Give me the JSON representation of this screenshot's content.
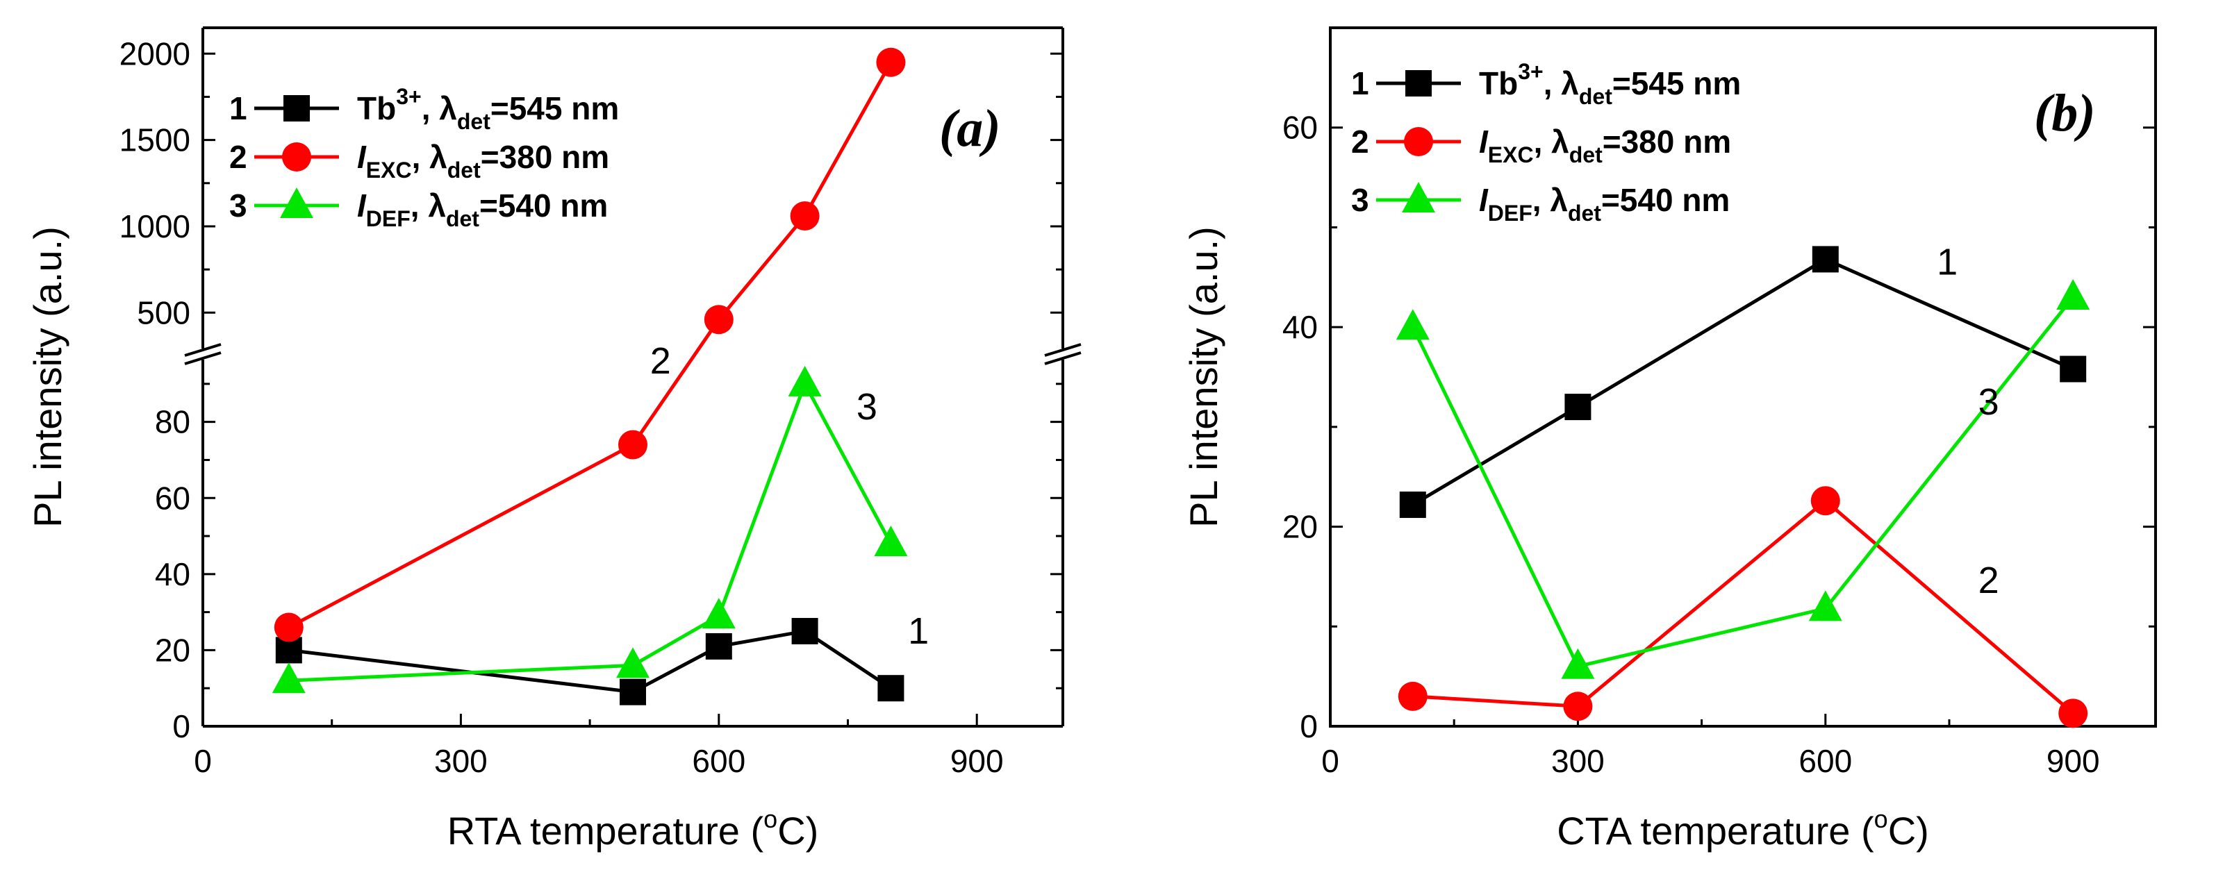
{
  "colors": {
    "series_1": "#000000",
    "series_2": "#ff0000",
    "series_3": "#00e600"
  },
  "chart_data": [
    {
      "type": "line",
      "panel_tag": "(a)",
      "xlabel": "RTA temperature (°C)",
      "xlabel_parts": [
        "RTA temperature (",
        "o",
        "C)"
      ],
      "ylabel": "PL intensity (a.u.)",
      "xlim": [
        0,
        1000
      ],
      "x_ticks": [
        0,
        300,
        600,
        900
      ],
      "axis_break": true,
      "ylim_lower": [
        0,
        96
      ],
      "y_ticks_lower": [
        0,
        20,
        40,
        60,
        80
      ],
      "ylim_upper": [
        300,
        2150
      ],
      "y_ticks_upper": [
        500,
        1000,
        1500,
        2000
      ],
      "legend": [
        {
          "num": "1",
          "main": "Tb",
          "sup": "3+",
          "rest": ", λ",
          "sub": "det",
          "tail": "=545 nm"
        },
        {
          "num": "2",
          "main": "I",
          "sub1": "EXC",
          "rest": ", λ",
          "sub": "det",
          "tail": "=380 nm"
        },
        {
          "num": "3",
          "main": "I",
          "sub1": "DEF",
          "rest": ", λ",
          "sub": "det",
          "tail": "=540 nm"
        }
      ],
      "series": [
        {
          "name": "1",
          "marker": "square",
          "x": [
            100,
            500,
            600,
            700,
            800
          ],
          "y": [
            20,
            9,
            21,
            25,
            10
          ]
        },
        {
          "name": "2",
          "marker": "circle",
          "x": [
            100,
            500,
            600,
            700,
            800
          ],
          "y": [
            26,
            74,
            460,
            1060,
            1950
          ]
        },
        {
          "name": "3",
          "marker": "triangle",
          "x": [
            100,
            500,
            600,
            700,
            800
          ],
          "y": [
            12,
            16,
            29,
            90,
            48
          ]
        }
      ],
      "curve_labels": [
        {
          "text": "1",
          "x": 820,
          "y": 25
        },
        {
          "text": "2",
          "x": 520,
          "y": 96
        },
        {
          "text": "3",
          "x": 760,
          "y": 84
        }
      ]
    },
    {
      "type": "line",
      "panel_tag": "(b)",
      "xlabel": "CTA temperature (°C)",
      "xlabel_parts": [
        "CTA temperature (",
        "o",
        "C)"
      ],
      "ylabel": "PL intensity (a.u.)",
      "xlim": [
        0,
        1000
      ],
      "x_ticks": [
        0,
        300,
        600,
        900
      ],
      "ylim": [
        0,
        70
      ],
      "y_ticks": [
        0,
        20,
        40,
        60
      ],
      "legend": [
        {
          "num": "1",
          "main": "Tb",
          "sup": "3+",
          "rest": ", λ",
          "sub": "det",
          "tail": "=545 nm"
        },
        {
          "num": "2",
          "main": "I",
          "sub1": "EXC",
          "rest": ", λ",
          "sub": "det",
          "tail": "=380 nm"
        },
        {
          "num": "3",
          "main": "I",
          "sub1": "DEF",
          "rest": ", λ",
          "sub": "det",
          "tail": "=540 nm"
        }
      ],
      "series": [
        {
          "name": "1",
          "marker": "square",
          "x": [
            100,
            300,
            600,
            900
          ],
          "y": [
            22.2,
            32,
            46.8,
            35.8
          ]
        },
        {
          "name": "2",
          "marker": "circle",
          "x": [
            100,
            300,
            600,
            900
          ],
          "y": [
            3,
            2,
            22.6,
            1.3
          ]
        },
        {
          "name": "3",
          "marker": "triangle",
          "x": [
            100,
            300,
            600,
            900
          ],
          "y": [
            40,
            6,
            11.8,
            43
          ]
        }
      ],
      "curve_labels": [
        {
          "text": "1",
          "x": 735,
          "y": 46.5
        },
        {
          "text": "2",
          "x": 785,
          "y": 14.6
        },
        {
          "text": "3",
          "x": 785,
          "y": 32.5
        }
      ]
    }
  ]
}
